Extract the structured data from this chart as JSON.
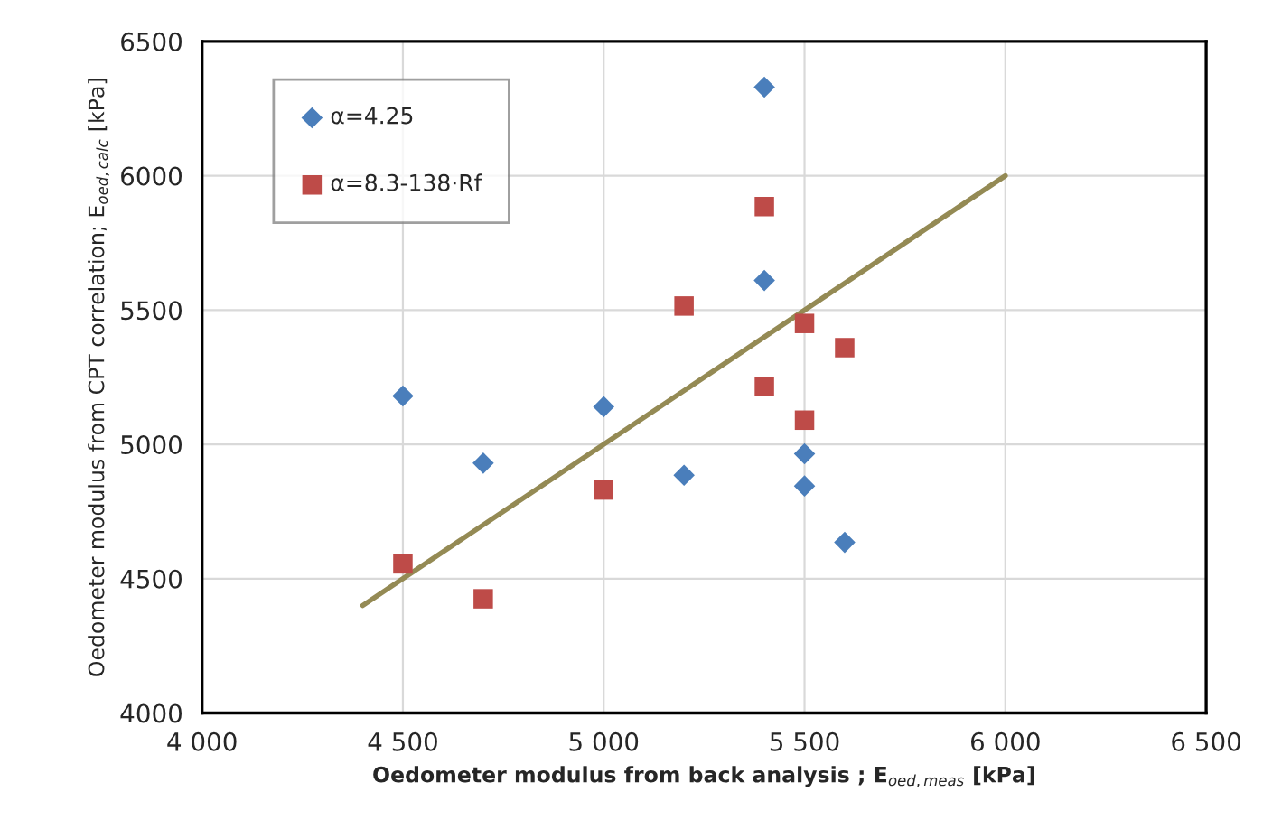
{
  "chart_data": {
    "type": "scatter",
    "xlabel": "Oedometer modulus from back analysis ; E$_{oed,meas}$ [kPa]",
    "ylabel": "Oedometer modulus from CPT correlation; E$_{oed,calc}$ [kPa]",
    "xlim": [
      4000,
      6500
    ],
    "ylim": [
      4000,
      6500
    ],
    "xticks": [
      {
        "value": 4000,
        "label": "4 000"
      },
      {
        "value": 4500,
        "label": "4 500"
      },
      {
        "value": 5000,
        "label": "5 000"
      },
      {
        "value": 5500,
        "label": "5 500"
      },
      {
        "value": 6000,
        "label": "6 000"
      },
      {
        "value": 6500,
        "label": "6 500"
      }
    ],
    "yticks": [
      4000,
      4500,
      5000,
      5500,
      6000,
      6500
    ],
    "grid": true,
    "legend": "top left",
    "series": [
      {
        "name": "α=4.25",
        "color": "#4a7ebb",
        "marker": "diamond",
        "x": [
          4500,
          4700,
          5000,
          5400,
          5400,
          5200,
          5500,
          5500,
          5600
        ],
        "values": [
          5180,
          4930,
          5140,
          6330,
          5610,
          4885,
          4965,
          4845,
          4635
        ]
      },
      {
        "name": "α=8.3-138·Rf",
        "color": "#be4b48",
        "marker": "square",
        "x": [
          4500,
          4700,
          5000,
          5400,
          5200,
          5500,
          5600,
          5400,
          5500
        ],
        "values": [
          4555,
          4425,
          4830,
          5885,
          5515,
          5450,
          5360,
          5215,
          5090
        ]
      },
      {
        "type": "line",
        "color": "#948a54",
        "marker": "none",
        "x": [
          4400,
          6000
        ],
        "values": [
          4400,
          6000
        ]
      }
    ]
  }
}
